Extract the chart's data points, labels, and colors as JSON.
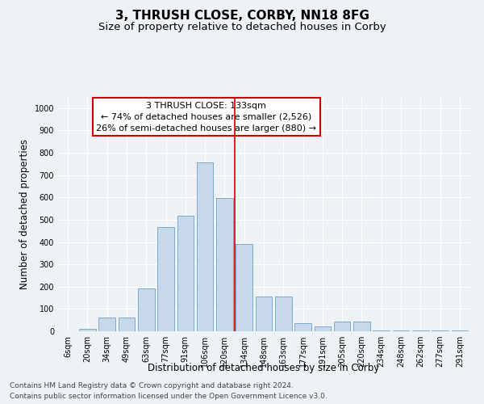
{
  "title": "3, THRUSH CLOSE, CORBY, NN18 8FG",
  "subtitle": "Size of property relative to detached houses in Corby",
  "xlabel": "Distribution of detached houses by size in Corby",
  "ylabel": "Number of detached properties",
  "categories": [
    "6sqm",
    "20sqm",
    "34sqm",
    "49sqm",
    "63sqm",
    "77sqm",
    "91sqm",
    "106sqm",
    "120sqm",
    "134sqm",
    "148sqm",
    "163sqm",
    "177sqm",
    "191sqm",
    "205sqm",
    "220sqm",
    "234sqm",
    "248sqm",
    "262sqm",
    "277sqm",
    "291sqm"
  ],
  "values": [
    0,
    12,
    62,
    62,
    193,
    468,
    516,
    757,
    597,
    390,
    155,
    155,
    35,
    22,
    42,
    42,
    5,
    2,
    2,
    2,
    5
  ],
  "bar_color": "#c8d8eb",
  "bar_edge_color": "#7aaad0",
  "vline_color": "#cc0000",
  "annotation_text": "3 THRUSH CLOSE: 133sqm\n← 74% of detached houses are smaller (2,526)\n26% of semi-detached houses are larger (880) →",
  "annotation_box_color": "white",
  "annotation_box_edge_color": "#cc0000",
  "ylim": [
    0,
    1050
  ],
  "yticks": [
    0,
    100,
    200,
    300,
    400,
    500,
    600,
    700,
    800,
    900,
    1000
  ],
  "footer_line1": "Contains HM Land Registry data © Crown copyright and database right 2024.",
  "footer_line2": "Contains public sector information licensed under the Open Government Licence v3.0.",
  "bg_color": "#eef2f7",
  "grid_color": "#ffffff",
  "title_fontsize": 11,
  "subtitle_fontsize": 9.5,
  "axis_label_fontsize": 8.5,
  "tick_fontsize": 7,
  "footer_fontsize": 6.5,
  "annotation_fontsize": 8,
  "vline_x": 8.5
}
